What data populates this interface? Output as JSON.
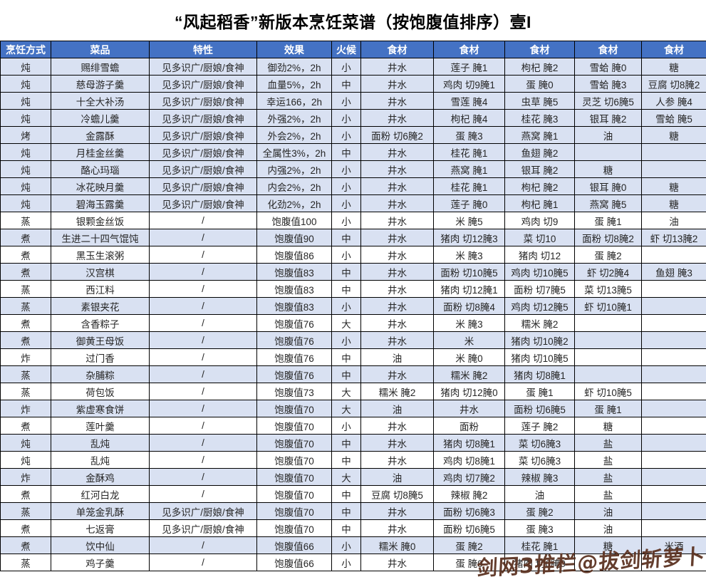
{
  "title": "“风起稻香”新版本烹饪菜谱（按饱腹值排序）壹I",
  "watermark": "剑网3推栏@拔剑斩萝卜",
  "colors": {
    "header_bg": "#4472C4",
    "header_text": "#FFFFFF",
    "shaded_row_bg": "#D9E1F2",
    "plain_row_bg": "#FFFFFF",
    "grid_line": "#000000",
    "watermark_text": "#5C3322"
  },
  "table": {
    "columns": [
      "烹饪方式",
      "菜品",
      "特性",
      "效果",
      "火候",
      "食材",
      "食材",
      "食材",
      "食材",
      "食材"
    ],
    "rows": [
      {
        "shade": true,
        "cells": [
          "炖",
          "赐绯雪蟾",
          "见多识广/厨娘/食神",
          "御劲2%，2h",
          "小",
          "井水",
          "莲子 腌1",
          "枸杞 腌2",
          "雪蛤 腌0",
          "糖"
        ]
      },
      {
        "shade": true,
        "cells": [
          "炖",
          "慈母游子羹",
          "见多识广/厨娘/食神",
          "血量5%，2h",
          "中",
          "井水",
          "鸡肉 切9腌1",
          "蛋 腌0",
          "雪蛤 腌3",
          "豆腐 切8腌2"
        ]
      },
      {
        "shade": true,
        "cells": [
          "炖",
          "十全大补汤",
          "见多识广/厨娘/食神",
          "幸运166，2h",
          "小",
          "井水",
          "雪莲 腌4",
          "虫草 腌5",
          "灵芝 切6腌5",
          "人参 腌4"
        ]
      },
      {
        "shade": true,
        "cells": [
          "炖",
          "冷蟾儿羹",
          "见多识广/厨娘/食神",
          "外强2%，2h",
          "小",
          "井水",
          "枸杞 腌4",
          "桂花 腌3",
          "银耳 腌2",
          "雪蛤 腌5"
        ]
      },
      {
        "shade": true,
        "cells": [
          "烤",
          "金露酥",
          "见多识广/厨娘/食神",
          "外会2%，2h",
          "小",
          "面粉 切6腌2",
          "蛋 腌3",
          "燕窝 腌1",
          "油",
          "糖"
        ]
      },
      {
        "shade": true,
        "cells": [
          "炖",
          "月桂金丝羹",
          "见多识广/厨娘/食神",
          "全属性3%，2h",
          "中",
          "井水",
          "桂花 腌1",
          "鱼翅 腌2",
          "",
          ""
        ]
      },
      {
        "shade": true,
        "cells": [
          "炖",
          "酪心玛瑙",
          "见多识广/厨娘/食神",
          "内强2%，2h",
          "小",
          "井水",
          "燕窝 腌1",
          "银耳 腌2",
          "糖",
          ""
        ]
      },
      {
        "shade": true,
        "cells": [
          "炖",
          "冰花映月羹",
          "见多识广/厨娘/食神",
          "内会2%，2h",
          "小",
          "井水",
          "桂花 腌1",
          "枸杞 腌2",
          "银耳 腌0",
          "糖"
        ]
      },
      {
        "shade": true,
        "cells": [
          "炖",
          "碧海玉露羹",
          "见多识广/厨娘/食神",
          "化劲2%，2h",
          "小",
          "井水",
          "莲子 腌0",
          "枸杞 腌1",
          "燕窝 腌5",
          "糖"
        ]
      },
      {
        "shade": false,
        "cells": [
          "蒸",
          "银颗金丝饭",
          "/",
          "饱腹值100",
          "小",
          "井水",
          "米 腌5",
          "鸡肉 切9",
          "蛋 腌1",
          "油"
        ]
      },
      {
        "shade": true,
        "cells": [
          "煮",
          "生进二十四气馄饨",
          "/",
          "饱腹值90",
          "中",
          "井水",
          "猪肉 切12腌3",
          "菜 切10",
          "面粉 切8腌2",
          "虾 切13腌2"
        ]
      },
      {
        "shade": false,
        "cells": [
          "煮",
          "黑玉生滚粥",
          "/",
          "饱腹值86",
          "小",
          "井水",
          "米 腌3",
          "猪肉 切12",
          "蛋 腌2",
          ""
        ]
      },
      {
        "shade": true,
        "cells": [
          "煮",
          "汉宫棋",
          "/",
          "饱腹值83",
          "中",
          "井水",
          "面粉 切10腌5",
          "鸡肉 切10腌5",
          "虾 切2腌4",
          "鱼翅 腌3"
        ]
      },
      {
        "shade": false,
        "cells": [
          "蒸",
          "西江料",
          "/",
          "饱腹值83",
          "中",
          "井水",
          "猪肉 切12腌1",
          "面粉 切7腌5",
          "菜 切13腌5",
          ""
        ]
      },
      {
        "shade": true,
        "cells": [
          "蒸",
          "素银夹花",
          "/",
          "饱腹值83",
          "小",
          "井水",
          "面粉 切8腌4",
          "鸡肉 切12腌5",
          "虾 切10腌1",
          ""
        ]
      },
      {
        "shade": false,
        "cells": [
          "煮",
          "含香粽子",
          "/",
          "饱腹值76",
          "大",
          "井水",
          "米 腌3",
          "糯米 腌2",
          "",
          ""
        ]
      },
      {
        "shade": true,
        "cells": [
          "煮",
          "御黄王母饭",
          "/",
          "饱腹值76",
          "小",
          "井水",
          "米",
          "猪肉 切10腌2",
          "",
          ""
        ]
      },
      {
        "shade": false,
        "cells": [
          "炸",
          "过门香",
          "/",
          "饱腹值76",
          "中",
          "油",
          "米 腌0",
          "猪肉 切10腌5",
          "",
          ""
        ]
      },
      {
        "shade": true,
        "cells": [
          "蒸",
          "杂脯粽",
          "/",
          "饱腹值76",
          "中",
          "井水",
          "糯米 腌2",
          "猪肉 切8腌1",
          "",
          ""
        ]
      },
      {
        "shade": false,
        "cells": [
          "蒸",
          "荷包饭",
          "/",
          "饱腹值73",
          "大",
          "糯米 腌2",
          "猪肉 切12腌0",
          "蛋 腌1",
          "虾 切10腌5",
          ""
        ]
      },
      {
        "shade": true,
        "cells": [
          "炸",
          "紫虚寒食饼",
          "/",
          "饱腹值70",
          "大",
          "油",
          "井水",
          "面粉 切6腌5",
          "蛋 腌1",
          ""
        ]
      },
      {
        "shade": false,
        "cells": [
          "煮",
          "莲叶羹",
          "/",
          "饱腹值70",
          "小",
          "井水",
          "面粉",
          "莲子 腌2",
          "糖",
          ""
        ]
      },
      {
        "shade": true,
        "cells": [
          "炖",
          "乱炖",
          "/",
          "饱腹值70",
          "中",
          "井水",
          "猪肉 切8腌1",
          "菜 切6腌3",
          "盐",
          ""
        ]
      },
      {
        "shade": false,
        "cells": [
          "炖",
          "乱炖",
          "/",
          "饱腹值70",
          "中",
          "井水",
          "鸡肉 切8腌1",
          "菜 切6腌3",
          "盐",
          ""
        ]
      },
      {
        "shade": true,
        "cells": [
          "炸",
          "金酥鸡",
          "/",
          "饱腹值70",
          "大",
          "油",
          "鸡肉 切7腌2",
          "辣椒 腌3",
          "盐",
          ""
        ]
      },
      {
        "shade": false,
        "cells": [
          "煮",
          "红河白龙",
          "/",
          "饱腹值70",
          "中",
          "豆腐 切8腌5",
          "辣椒 腌2",
          "油",
          "盐",
          ""
        ]
      },
      {
        "shade": true,
        "cells": [
          "蒸",
          "单笼金乳酥",
          "见多识广/厨娘/食神",
          "饱腹值70",
          "中",
          "井水",
          "面粉 切6腌3",
          "蛋 腌2",
          "油",
          ""
        ]
      },
      {
        "shade": false,
        "cells": [
          "煮",
          "七返膏",
          "见多识广/厨娘/食神",
          "饱腹值70",
          "中",
          "井水",
          "面粉 切6腌5",
          "蛋 腌3",
          "油",
          ""
        ]
      },
      {
        "shade": true,
        "cells": [
          "煮",
          "饮中仙",
          "/",
          "饱腹值66",
          "小",
          "糯米 腌0",
          "蛋 腌2",
          "桂花 腌1",
          "糖",
          "米酒"
        ]
      },
      {
        "shade": false,
        "cells": [
          "蒸",
          "鸡子羹",
          "/",
          "饱腹值66",
          "小",
          "井水",
          "蛋 腌0",
          "猪肉 切6腌0",
          "",
          ""
        ]
      }
    ]
  }
}
